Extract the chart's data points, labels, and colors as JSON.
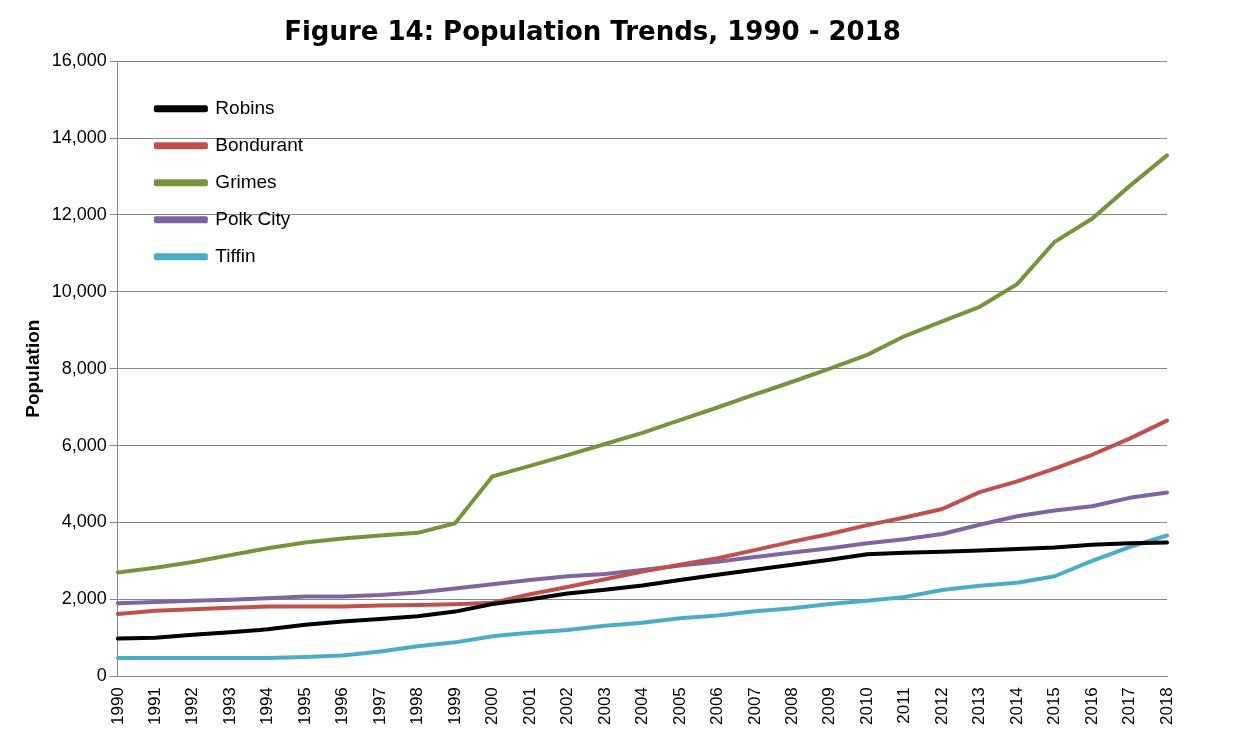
{
  "chart_data": {
    "type": "line",
    "title": "Figure 14: Population Trends, 1990 - 2018",
    "ylabel": "Population",
    "categories": [
      "1990",
      "1991",
      "1992",
      "1993",
      "1994",
      "1995",
      "1996",
      "1997",
      "1998",
      "1999",
      "2000",
      "2001",
      "2002",
      "2003",
      "2004",
      "2005",
      "2006",
      "2007",
      "2008",
      "2009",
      "2010",
      "2011",
      "2012",
      "2013",
      "2014",
      "2015",
      "2016",
      "2017",
      "2018"
    ],
    "series": [
      {
        "name": "Robins",
        "color": "#000000",
        "values": [
          980,
          1000,
          1080,
          1140,
          1220,
          1340,
          1420,
          1490,
          1560,
          1680,
          1880,
          2000,
          2150,
          2250,
          2360,
          2500,
          2640,
          2770,
          2900,
          3030,
          3170,
          3210,
          3240,
          3270,
          3310,
          3350,
          3420,
          3460,
          3480
        ]
      },
      {
        "name": "Bondurant",
        "color": "#c0504d",
        "values": [
          1620,
          1700,
          1740,
          1780,
          1810,
          1810,
          1810,
          1840,
          1850,
          1870,
          1910,
          2130,
          2320,
          2520,
          2720,
          2900,
          3070,
          3280,
          3500,
          3700,
          3930,
          4130,
          4350,
          4790,
          5070,
          5400,
          5760,
          6180,
          6650
        ]
      },
      {
        "name": "Grimes",
        "color": "#77933c",
        "values": [
          2700,
          2820,
          2970,
          3150,
          3330,
          3480,
          3580,
          3660,
          3730,
          3980,
          5200,
          5470,
          5750,
          6040,
          6330,
          6660,
          6990,
          7330,
          7660,
          8000,
          8360,
          8850,
          9230,
          9610,
          10200,
          11300,
          11900,
          12750,
          13550
        ]
      },
      {
        "name": "Polk City",
        "color": "#8064a2",
        "values": [
          1900,
          1930,
          1960,
          1990,
          2030,
          2070,
          2070,
          2110,
          2180,
          2280,
          2390,
          2500,
          2600,
          2660,
          2760,
          2880,
          2980,
          3100,
          3220,
          3330,
          3460,
          3560,
          3700,
          3940,
          4160,
          4310,
          4420,
          4640,
          4780
        ]
      },
      {
        "name": "Tiffin",
        "color": "#4bacc6",
        "values": [
          470,
          470,
          470,
          470,
          470,
          500,
          540,
          640,
          780,
          880,
          1040,
          1130,
          1200,
          1310,
          1390,
          1510,
          1580,
          1690,
          1770,
          1880,
          1960,
          2060,
          2240,
          2350,
          2430,
          2600,
          3000,
          3360,
          3660
        ]
      }
    ],
    "ylim": [
      0,
      16000
    ],
    "yticks": [
      {
        "value": 0,
        "label": "0"
      },
      {
        "value": 2000,
        "label": "2,000"
      },
      {
        "value": 4000,
        "label": "4,000"
      },
      {
        "value": 6000,
        "label": "6,000"
      },
      {
        "value": 8000,
        "label": "8,000"
      },
      {
        "value": 10000,
        "label": "10,000"
      },
      {
        "value": 12000,
        "label": "12,000"
      },
      {
        "value": 14000,
        "label": "14,000"
      },
      {
        "value": 16000,
        "label": "16,000"
      }
    ],
    "grid": "y",
    "legend": "top left",
    "marker": "none",
    "line_style": "solid"
  }
}
